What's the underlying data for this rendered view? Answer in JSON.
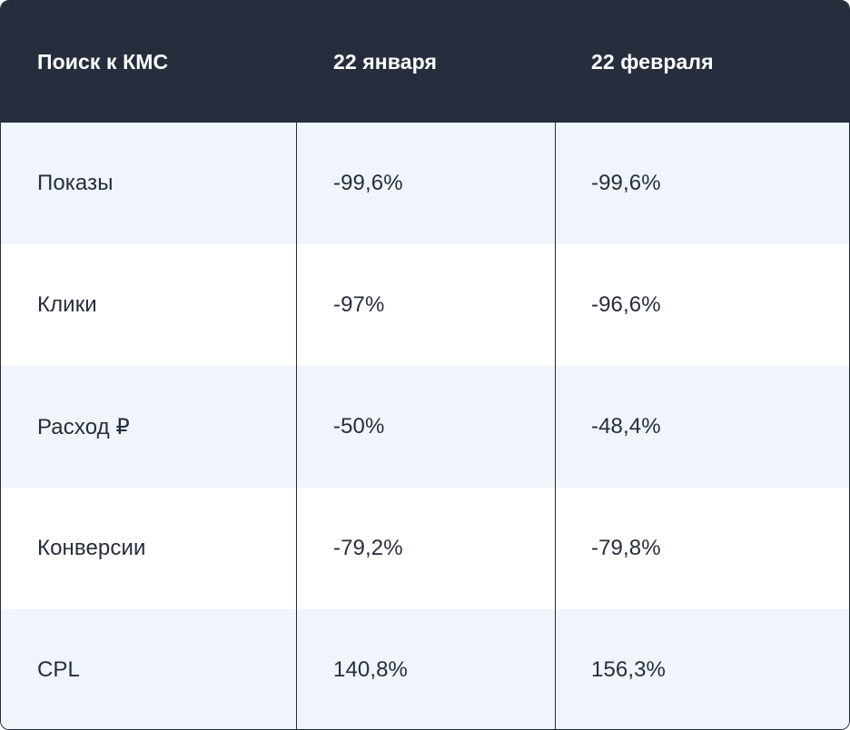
{
  "table": {
    "headers": [
      "Поиск к КМС",
      "22 января",
      "22 февраля"
    ],
    "rows": [
      [
        "Показы",
        "-99,6%",
        "-99,6%"
      ],
      [
        "Клики",
        "-97%",
        "-96,6%"
      ],
      [
        "Расход ₽",
        "-50%",
        "-48,4%"
      ],
      [
        "Конверсии",
        "-79,2%",
        "-79,8%"
      ],
      [
        "CPL",
        "140,8%",
        "156,3%"
      ]
    ]
  },
  "colors": {
    "header_bg": "#262d3d",
    "header_text": "#ffffff",
    "shade_row": "#f0f4fb",
    "plain_row": "#ffffff",
    "text": "#262d3d"
  }
}
